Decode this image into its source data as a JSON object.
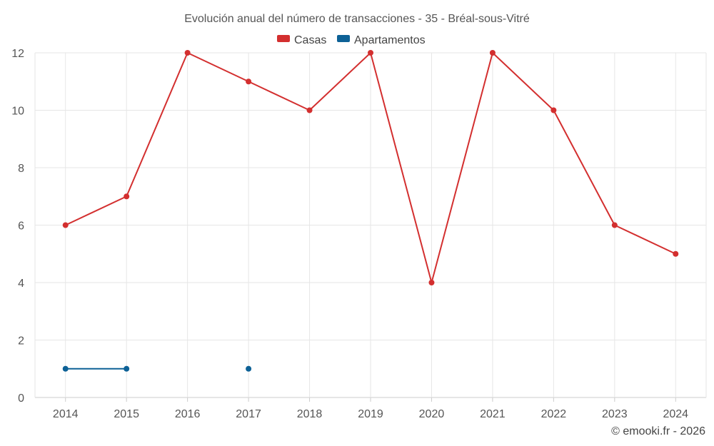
{
  "chart_data": {
    "type": "line",
    "title": "Evolución anual del número de transacciones - 35 - Bréal-sous-Vitré",
    "categories": [
      "2014",
      "2015",
      "2016",
      "2017",
      "2018",
      "2019",
      "2020",
      "2021",
      "2022",
      "2023",
      "2024"
    ],
    "yticks": [
      "0",
      "2",
      "4",
      "6",
      "8",
      "10",
      "12"
    ],
    "ylim": [
      0,
      12
    ],
    "grid": true,
    "legend_position": "top-center",
    "series": [
      {
        "name": "Casas",
        "color": "#d32f2f",
        "values": [
          6,
          7,
          12,
          11,
          10,
          12,
          4,
          12,
          10,
          6,
          5
        ]
      },
      {
        "name": "Apartamentos",
        "color": "#0d6196",
        "values": [
          1,
          1,
          null,
          1,
          null,
          null,
          null,
          null,
          null,
          null,
          null
        ]
      }
    ],
    "footer": "© emooki.fr - 2026"
  }
}
